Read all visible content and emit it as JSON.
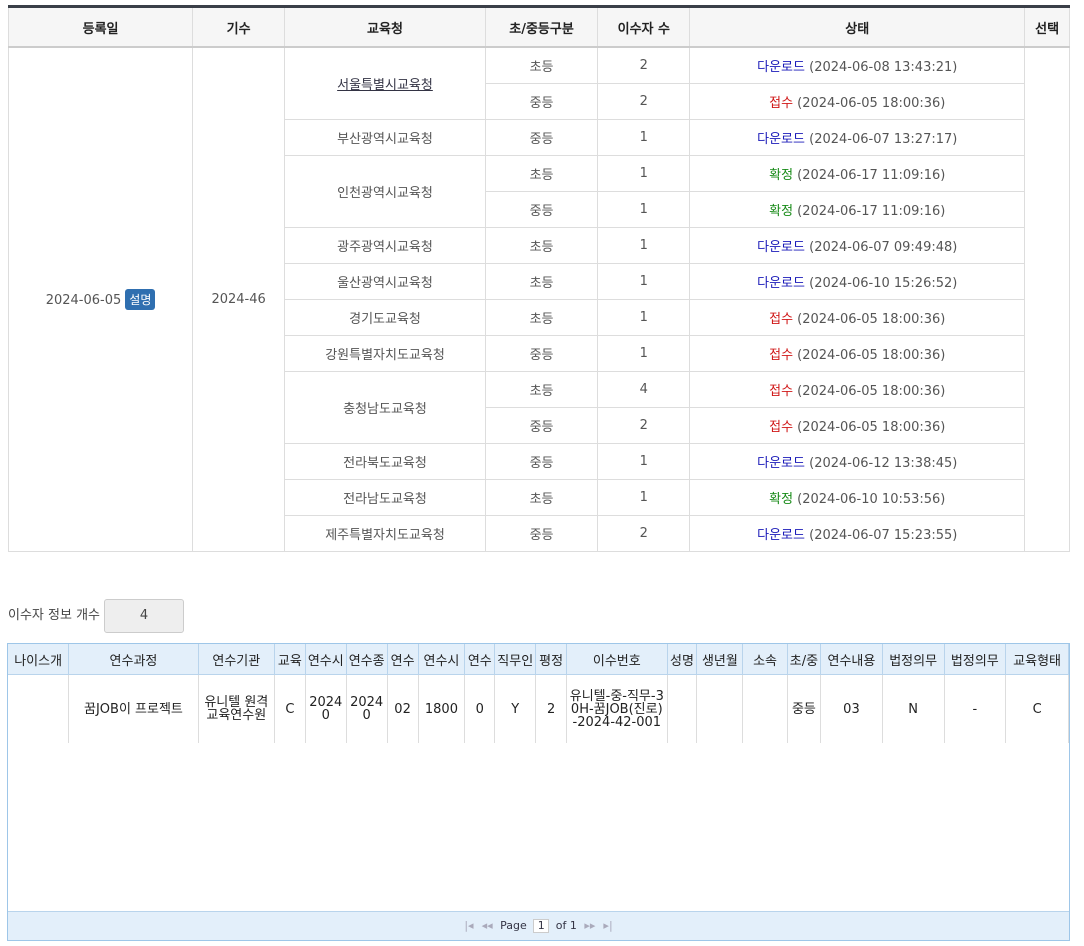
{
  "summary_table": {
    "headers": [
      "등록일",
      "기수",
      "교육청",
      "초/중등구분",
      "이수자 수",
      "상태",
      "선택"
    ],
    "registered": "2024-06-05",
    "badge": "설명",
    "term": "2024-46",
    "status_colors": {
      "다운로드": "#1a1ab8",
      "접수": "#d01818",
      "확정": "#168a16"
    },
    "offices": [
      {
        "name": "서울특별시교육청",
        "link": true,
        "rows": [
          {
            "level": "초등",
            "count": 2,
            "status": "다운로드",
            "time": "(2024-06-08 13:43:21)"
          },
          {
            "level": "중등",
            "count": 2,
            "status": "접수",
            "time": "(2024-06-05 18:00:36)"
          }
        ]
      },
      {
        "name": "부산광역시교육청",
        "rows": [
          {
            "level": "중등",
            "count": 1,
            "status": "다운로드",
            "time": "(2024-06-07 13:27:17)"
          }
        ]
      },
      {
        "name": "인천광역시교육청",
        "rows": [
          {
            "level": "초등",
            "count": 1,
            "status": "확정",
            "time": "(2024-06-17 11:09:16)"
          },
          {
            "level": "중등",
            "count": 1,
            "status": "확정",
            "time": "(2024-06-17 11:09:16)"
          }
        ]
      },
      {
        "name": "광주광역시교육청",
        "rows": [
          {
            "level": "초등",
            "count": 1,
            "status": "다운로드",
            "time": "(2024-06-07 09:49:48)"
          }
        ]
      },
      {
        "name": "울산광역시교육청",
        "rows": [
          {
            "level": "초등",
            "count": 1,
            "status": "다운로드",
            "time": "(2024-06-10 15:26:52)"
          }
        ]
      },
      {
        "name": "경기도교육청",
        "rows": [
          {
            "level": "초등",
            "count": 1,
            "status": "접수",
            "time": "(2024-06-05 18:00:36)"
          }
        ]
      },
      {
        "name": "강원특별자치도교육청",
        "rows": [
          {
            "level": "중등",
            "count": 1,
            "status": "접수",
            "time": "(2024-06-05 18:00:36)"
          }
        ]
      },
      {
        "name": "충청남도교육청",
        "rows": [
          {
            "level": "초등",
            "count": 4,
            "status": "접수",
            "time": "(2024-06-05 18:00:36)"
          },
          {
            "level": "중등",
            "count": 2,
            "status": "접수",
            "time": "(2024-06-05 18:00:36)"
          }
        ]
      },
      {
        "name": "전라북도교육청",
        "rows": [
          {
            "level": "중등",
            "count": 1,
            "status": "다운로드",
            "time": "(2024-06-12 13:38:45)"
          }
        ]
      },
      {
        "name": "전라남도교육청",
        "rows": [
          {
            "level": "초등",
            "count": 1,
            "status": "확정",
            "time": "(2024-06-10 10:53:56)"
          }
        ]
      },
      {
        "name": "제주특별자치도교육청",
        "rows": [
          {
            "level": "중등",
            "count": 2,
            "status": "다운로드",
            "time": "(2024-06-07 15:23:55)"
          }
        ]
      }
    ]
  },
  "info_count": {
    "label": "이수자 정보 개수",
    "value": "4"
  },
  "grid": {
    "widths": [
      61,
      132,
      77,
      31,
      39,
      39,
      31,
      47,
      30,
      39,
      31,
      102,
      30,
      46,
      45,
      32,
      62,
      62,
      62,
      63
    ],
    "headers": [
      "나이스개",
      "연수과정",
      "연수기관",
      "교육",
      "연수시",
      "연수종",
      "연수",
      "연수시",
      "연수",
      "직무인",
      "평정",
      "이수번호",
      "성명",
      "생년월",
      "소속",
      "초/중",
      "연수내용",
      "법정의무",
      "법정의무",
      "교육형태"
    ],
    "rows": [
      [
        null,
        "꿈JOB이 프로젝트",
        "유니텔 원격 교육연수원",
        "C",
        "20240",
        "20240",
        "02",
        "1800",
        "0",
        "Y",
        "2",
        "유니텔-중-직무-30H-꿈JOB(진로)-2024-42-001",
        null,
        null,
        null,
        "중등",
        "03",
        "N",
        "-",
        "C"
      ]
    ],
    "pager": {
      "page_label": "Page",
      "page": "1",
      "of": "of 1"
    }
  }
}
